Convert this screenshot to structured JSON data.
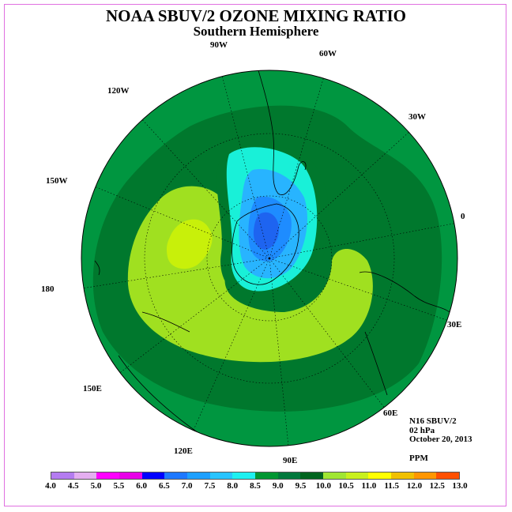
{
  "title": "NOAA SBUV/2 OZONE MIXING RATIO",
  "subtitle": "Southern Hemisphere",
  "longitude_labels": [
    "90W",
    "60W",
    "30W",
    "0",
    "30E",
    "60E",
    "90E",
    "120E",
    "150E",
    "180",
    "150W",
    "120W"
  ],
  "info": {
    "satellite": "N16 SBUV/2",
    "level": "02 hPa",
    "date": "October 20, 2013",
    "units": "PPM"
  },
  "colorbar": {
    "ticks": [
      "4.0",
      "4.5",
      "5.0",
      "5.5",
      "6.0",
      "6.5",
      "7.0",
      "7.5",
      "8.0",
      "8.5",
      "9.0",
      "9.5",
      "10.0",
      "10.5",
      "11.0",
      "11.5",
      "12.0",
      "12.5",
      "13.0"
    ],
    "colors": [
      "#b47cf0",
      "#e4aef0",
      "#ff00ff",
      "#e800e8",
      "#0000ff",
      "#1e78ff",
      "#1ea0ff",
      "#28c4ff",
      "#1ef0f0",
      "#009632",
      "#00783c",
      "#00641e",
      "#a0e632",
      "#c8f01e",
      "#ffff00",
      "#f0c000",
      "#ff9600",
      "#ff5000",
      "#ff0000",
      "#965032"
    ]
  },
  "contour_colors": {
    "cyan": "#19f0d8",
    "green_8_0": "#009640",
    "green_8_5": "#00782d",
    "green_9_0": "#006a28",
    "lime_9_5": "#a0e020",
    "lime_10_0": "#c8f00a",
    "light_blue": "#28b4ff",
    "mid_blue": "#1e8cff",
    "dark_blue": "#1e64f0"
  }
}
